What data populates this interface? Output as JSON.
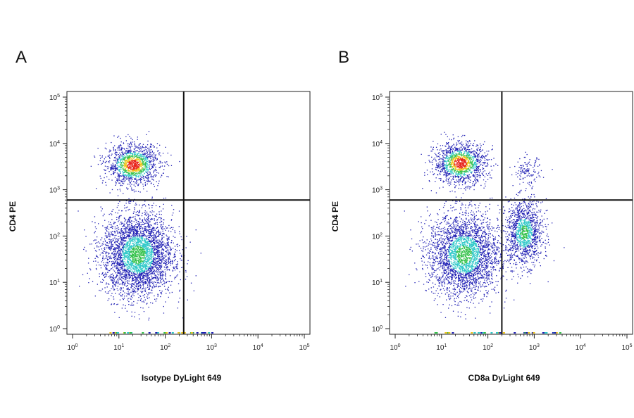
{
  "panels": {
    "a": {
      "label": "A"
    },
    "b": {
      "label": "B"
    }
  },
  "chart_data": [
    {
      "type": "scatter",
      "panel": "A",
      "xlabel": "Isotype DyLight 649",
      "ylabel": "CD4 PE",
      "scale": "log",
      "xlim": [
        1,
        100000
      ],
      "ylim": [
        1,
        100000
      ],
      "x_ticks": [
        "10^0",
        "10^1",
        "10^2",
        "10^3",
        "10^4",
        "10^5"
      ],
      "y_ticks": [
        "10^0",
        "10^1",
        "10^2",
        "10^3",
        "10^4",
        "10^5"
      ],
      "quadrant_gate": {
        "x": 250,
        "y": 600
      },
      "populations": [
        {
          "name": "CD4+ cluster",
          "center": [
            20,
            3500
          ],
          "spread_log": [
            0.28,
            0.22
          ],
          "events": 1400,
          "density": "high"
        },
        {
          "name": "double-negative cluster",
          "center": [
            25,
            40
          ],
          "spread_log": [
            0.38,
            0.45
          ],
          "events": 3600,
          "density": "medium"
        }
      ],
      "colors": {
        "low": "#1f1fb4",
        "mid": "#2fc8c8",
        "midhigh": "#34c14a",
        "high": "#f0c419",
        "peak": "#e8241a"
      }
    },
    {
      "type": "scatter",
      "panel": "B",
      "xlabel": "CD8a DyLight 649",
      "ylabel": "CD4 PE",
      "scale": "log",
      "xlim": [
        1,
        100000
      ],
      "ylim": [
        1,
        100000
      ],
      "x_ticks": [
        "10^0",
        "10^1",
        "10^2",
        "10^3",
        "10^4",
        "10^5"
      ],
      "y_ticks": [
        "10^0",
        "10^1",
        "10^2",
        "10^3",
        "10^4",
        "10^5"
      ],
      "quadrant_gate": {
        "x": 200,
        "y": 600
      },
      "populations": [
        {
          "name": "CD4+ cluster",
          "center": [
            25,
            3800
          ],
          "spread_log": [
            0.28,
            0.22
          ],
          "events": 1400,
          "density": "high"
        },
        {
          "name": "CD4+CD8a+ cluster",
          "center": [
            700,
            2500
          ],
          "spread_log": [
            0.15,
            0.15
          ],
          "events": 120,
          "density": "low"
        },
        {
          "name": "double-negative cluster",
          "center": [
            30,
            40
          ],
          "spread_log": [
            0.38,
            0.45
          ],
          "events": 3000,
          "density": "medium"
        },
        {
          "name": "CD8a+ cluster",
          "center": [
            600,
            120
          ],
          "spread_log": [
            0.2,
            0.35
          ],
          "events": 1300,
          "density": "medium"
        }
      ],
      "colors": {
        "low": "#1f1fb4",
        "mid": "#2fc8c8",
        "midhigh": "#34c14a",
        "high": "#f0c419",
        "peak": "#e8241a"
      }
    }
  ]
}
